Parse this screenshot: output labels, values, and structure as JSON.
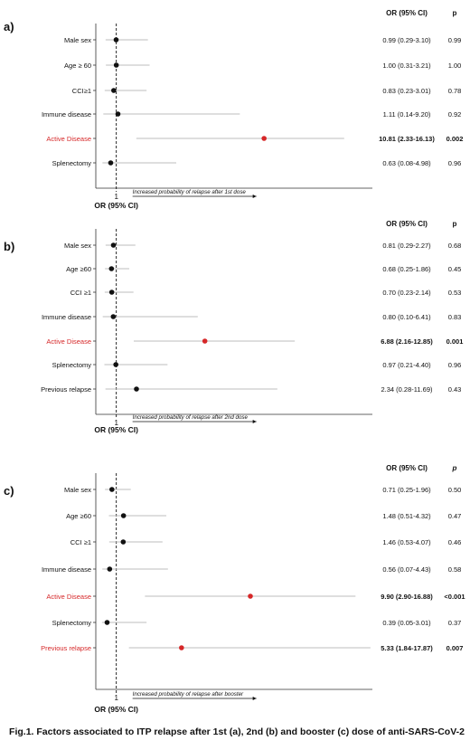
{
  "chart_data": [
    {
      "type": "forest",
      "panel_label": "a)",
      "header_or": "OR (95% CI)",
      "header_p": "p",
      "xlabel": "OR (95% CI)",
      "ref_tick": "1",
      "arrow_text": "Increased probability of relapse after 1st dose",
      "rows": [
        {
          "label": "Male sex",
          "or": 0.99,
          "lo": 0.29,
          "hi": 3.1,
          "ci_text": "0.99 (0.29-3.10)",
          "p": "0.99",
          "highlight": false
        },
        {
          "label": "Age ≥ 60",
          "or": 1.0,
          "lo": 0.31,
          "hi": 3.21,
          "ci_text": "1.00 (0.31-3.21)",
          "p": "1.00",
          "highlight": false
        },
        {
          "label": "CCI≥1",
          "or": 0.83,
          "lo": 0.23,
          "hi": 3.01,
          "ci_text": "0.83 (0.23-3.01)",
          "p": "0.78",
          "highlight": false
        },
        {
          "label": "Immune disease",
          "or": 1.11,
          "lo": 0.14,
          "hi": 9.2,
          "ci_text": "1.11 (0.14-9.20)",
          "p": "0.92",
          "highlight": false
        },
        {
          "label": "Active Disease",
          "or": 10.81,
          "lo": 2.33,
          "hi": 16.13,
          "ci_text": "10.81 (2.33-16.13)",
          "p": "0.002",
          "highlight": true
        },
        {
          "label": "Splenectomy",
          "or": 0.63,
          "lo": 0.08,
          "hi": 4.98,
          "ci_text": "0.63 (0.08-4.98)",
          "p": "0.96",
          "highlight": false
        }
      ]
    },
    {
      "type": "forest",
      "panel_label": "b)",
      "header_or": "OR (95% CI)",
      "header_p": "p",
      "xlabel": "OR (95% CI)",
      "ref_tick": "1",
      "arrow_text": "Increased probability of relapse after 2nd dose",
      "rows": [
        {
          "label": "Male sex",
          "or": 0.81,
          "lo": 0.29,
          "hi": 2.27,
          "ci_text": "0.81 (0.29-2.27)",
          "p": "0.68",
          "highlight": false
        },
        {
          "label": "Age ≥60",
          "or": 0.68,
          "lo": 0.25,
          "hi": 1.86,
          "ci_text": "0.68 (0.25-1.86)",
          "p": "0.45",
          "highlight": false
        },
        {
          "label": "CCI ≥1",
          "or": 0.7,
          "lo": 0.23,
          "hi": 2.14,
          "ci_text": "0.70 (0.23-2.14)",
          "p": "0.53",
          "highlight": false
        },
        {
          "label": "Immune disease",
          "or": 0.8,
          "lo": 0.1,
          "hi": 6.41,
          "ci_text": "0.80 (0.10-6.41)",
          "p": "0.83",
          "highlight": false
        },
        {
          "label": "Active Disease",
          "or": 6.88,
          "lo": 2.16,
          "hi": 12.85,
          "ci_text": "6.88 (2.16-12.85)",
          "p": "0.001",
          "highlight": true
        },
        {
          "label": "Splenectomy",
          "or": 0.97,
          "lo": 0.21,
          "hi": 4.4,
          "ci_text": "0.97 (0.21-4.40)",
          "p": "0.96",
          "highlight": false
        },
        {
          "label": "Previous relapse",
          "or": 2.34,
          "lo": 0.28,
          "hi": 11.69,
          "ci_text": "2.34 (0.28-11.69)",
          "p": "0.43",
          "highlight": false
        }
      ]
    },
    {
      "type": "forest",
      "panel_label": "c)",
      "header_or": "OR (95% CI)",
      "header_p": "p",
      "xlabel": "OR (95% CI)",
      "ref_tick": "1",
      "arrow_text": "Increased probability of relapse after booster",
      "rows": [
        {
          "label": "Male sex",
          "or": 0.71,
          "lo": 0.25,
          "hi": 1.96,
          "ci_text": "0.71 (0.25-1.96)",
          "p": "0.50",
          "highlight": false
        },
        {
          "label": "Age ≥60",
          "or": 1.48,
          "lo": 0.51,
          "hi": 4.32,
          "ci_text": "1.48 (0.51-4.32)",
          "p": "0.47",
          "highlight": false
        },
        {
          "label": "CCI ≥1",
          "or": 1.46,
          "lo": 0.53,
          "hi": 4.07,
          "ci_text": "1.46 (0.53-4.07)",
          "p": "0.46",
          "highlight": false
        },
        {
          "label": "Immune disease",
          "or": 0.56,
          "lo": 0.07,
          "hi": 4.43,
          "ci_text": "0.56 (0.07-4.43)",
          "p": "0.58",
          "highlight": false
        },
        {
          "label": "Active Disease",
          "or": 9.9,
          "lo": 2.9,
          "hi": 16.88,
          "ci_text": "9.90 (2.90-16.88)",
          "p": "<0.001",
          "highlight": true
        },
        {
          "label": "Splenectomy",
          "or": 0.39,
          "lo": 0.05,
          "hi": 3.01,
          "ci_text": "0.39 (0.05-3.01)",
          "p": "0.37",
          "highlight": false
        },
        {
          "label": "Previous relapse",
          "or": 5.33,
          "lo": 1.84,
          "hi": 17.87,
          "ci_text": "5.33 (1.84-17.87)",
          "p": "0.007",
          "highlight": true
        }
      ]
    }
  ],
  "caption": "Fig.1. Factors associated to ITP relapse after 1st (a), 2nd (b) and booster (c) dose of anti-SARS-CoV-2",
  "colors": {
    "highlight": "#d62728",
    "normal": "#111111",
    "ci_line": "#bdbdbd",
    "axis": "#333333"
  }
}
